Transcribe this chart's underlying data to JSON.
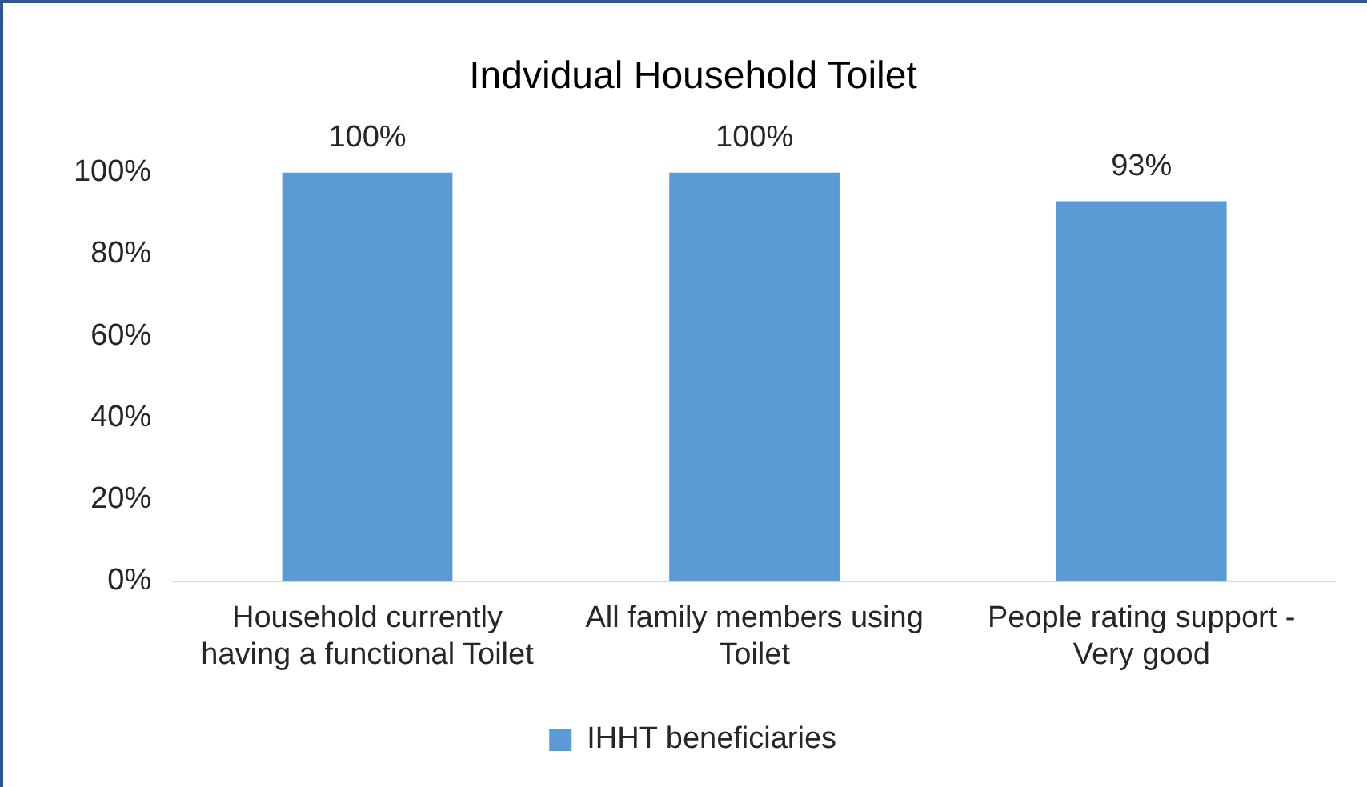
{
  "chart_data": {
    "type": "bar",
    "title": "Indvidual Household Toilet",
    "categories": [
      "Household currently having a functional Toilet",
      "All family members using Toilet",
      "People rating support - Very good"
    ],
    "series": [
      {
        "name": "IHHT beneficiaries",
        "color": "#5b9bd5",
        "values": [
          100,
          100,
          93
        ],
        "value_labels": [
          "100%",
          "100%",
          "93%"
        ]
      }
    ],
    "ylim": [
      0,
      100
    ],
    "yticks": [
      {
        "value": 0,
        "label": "0%"
      },
      {
        "value": 20,
        "label": "20%"
      },
      {
        "value": 40,
        "label": "40%"
      },
      {
        "value": 60,
        "label": "60%"
      },
      {
        "value": 80,
        "label": "80%"
      },
      {
        "value": 100,
        "label": "100%"
      }
    ],
    "grid": false,
    "legend": "bottom"
  }
}
